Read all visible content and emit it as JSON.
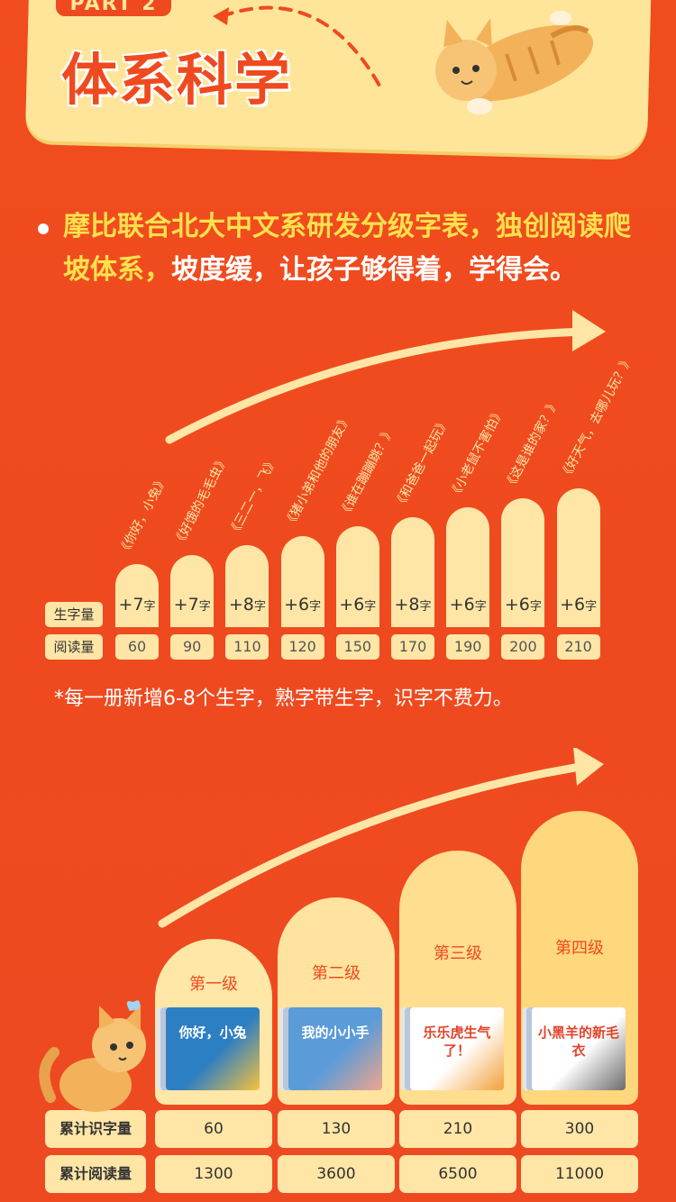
{
  "header": {
    "part_tag": "PART 2",
    "title": "体系科学"
  },
  "description": {
    "highlight": "摩比联合北大中文系研发分级字表，独创阅读爬坡体系，",
    "rest": "坡度缓，让孩子够得着，学得会。"
  },
  "level_chart": {
    "row_labels": {
      "new_chars": "生字量",
      "reading": "阅读量"
    },
    "unit": "字",
    "books": [
      {
        "title": "《你好，小兔》",
        "increment": "+7",
        "reading": "60"
      },
      {
        "title": "《好饿的毛毛虫》",
        "increment": "+7",
        "reading": "90"
      },
      {
        "title": "《三二一，飞》",
        "increment": "+8",
        "reading": "110"
      },
      {
        "title": "《猪小弟和他的朋友》",
        "increment": "+6",
        "reading": "120"
      },
      {
        "title": "《谁在蹦蹦跳？》",
        "increment": "+6",
        "reading": "150"
      },
      {
        "title": "《和爸爸一起玩》",
        "increment": "+8",
        "reading": "170"
      },
      {
        "title": "《小老鼠不害怕》",
        "increment": "+6",
        "reading": "190"
      },
      {
        "title": "《这是谁的家？》",
        "increment": "+6",
        "reading": "200"
      },
      {
        "title": "《好天气，去哪儿玩？》",
        "increment": "+6",
        "reading": "210"
      }
    ],
    "note": "*每一册新增6-8个生字，熟字带生字，识字不费力。"
  },
  "grade_chart": {
    "row_labels": {
      "total_chars": "累计识字量",
      "total_reading": "累计阅读量"
    },
    "levels": [
      {
        "name": "第一级",
        "cover_title": "你好，小兔",
        "total_chars": "60",
        "total_reading": "1300",
        "color": "#ffe7a8"
      },
      {
        "name": "第二级",
        "cover_title": "我的小小手",
        "total_chars": "130",
        "total_reading": "3600",
        "color": "#ffe39e"
      },
      {
        "name": "第三级",
        "cover_title": "乐乐虎生气了！",
        "total_chars": "210",
        "total_reading": "6500",
        "color": "#ffde8f"
      },
      {
        "name": "第四级",
        "cover_title": "小黑羊的新毛衣",
        "total_chars": "300",
        "total_reading": "11000",
        "color": "#ffd77d"
      }
    ]
  }
}
